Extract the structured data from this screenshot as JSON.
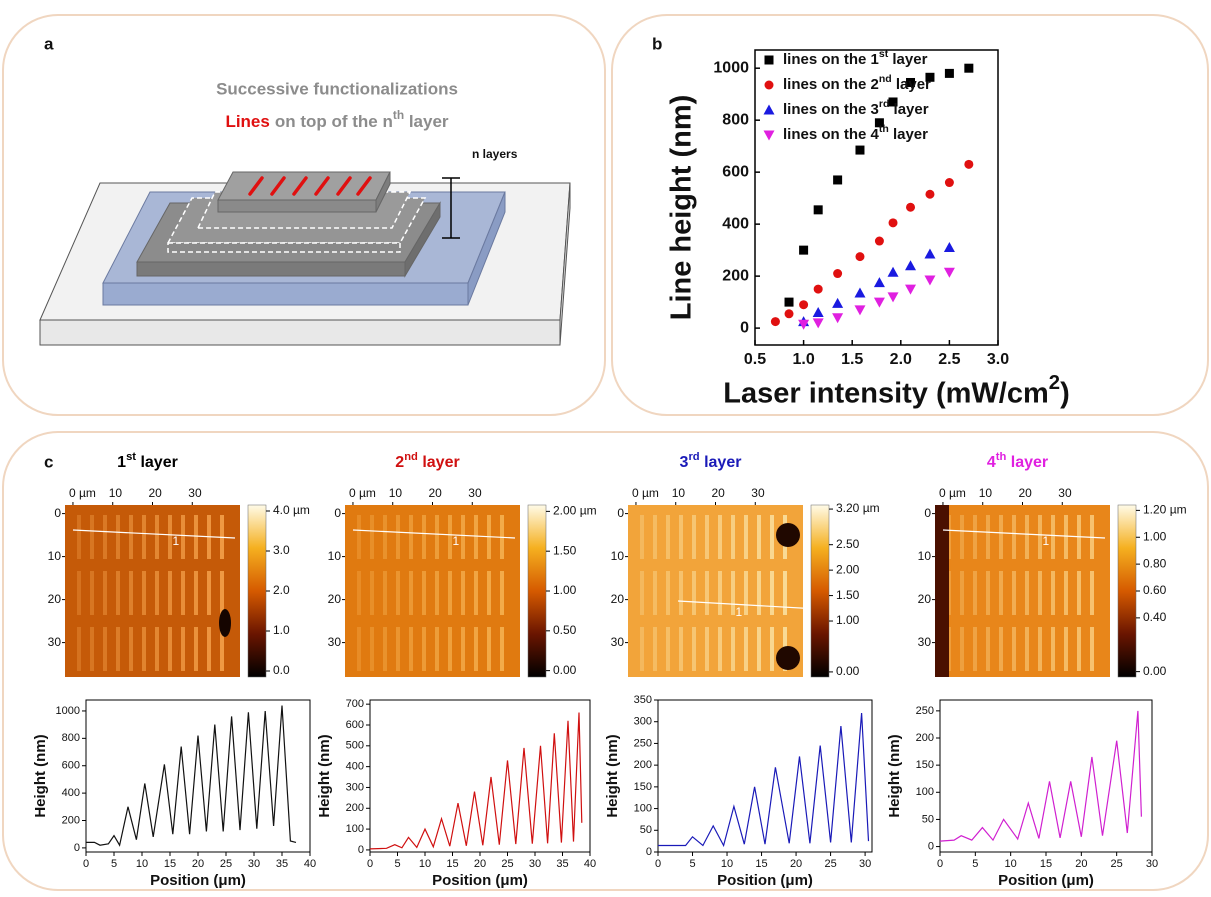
{
  "panel_labels": [
    "a",
    "b",
    "c"
  ],
  "panel_a": {
    "title": "Successive functionalizations",
    "highlight": "Lines",
    "rest": "on top of the nth layer",
    "annotation": "n layers"
  },
  "afm_images": [
    {
      "title": "1st layer",
      "color": "#000000",
      "xticks": [
        {
          "value": 0,
          "label": "0 µm"
        },
        10,
        20,
        30
      ],
      "yticks": [
        0,
        10,
        20,
        30
      ],
      "xlim": [
        -2,
        42
      ],
      "ylim": [
        -2,
        38
      ],
      "profile_label": "1",
      "colorbar": {
        "lim": [
          -0.15,
          4.15
        ],
        "ticks": [
          {
            "value": 4,
            "label": "4.0 µm"
          },
          {
            "value": 3,
            "label": "3.0"
          },
          {
            "value": 2,
            "label": "2.0"
          },
          {
            "value": 1,
            "label": "1.0"
          },
          {
            "value": 0,
            "label": "0.0"
          }
        ]
      }
    },
    {
      "title": "2nd layer",
      "color": "#d01010",
      "xticks": [
        {
          "value": 0,
          "label": "0 µm"
        },
        10,
        20,
        30
      ],
      "yticks": [
        0,
        10,
        20,
        30
      ],
      "xlim": [
        -2,
        42
      ],
      "ylim": [
        -2,
        38
      ],
      "profile_label": "1",
      "colorbar": {
        "lim": [
          -0.08,
          2.08
        ],
        "ticks": [
          {
            "value": 2,
            "label": "2.00 µm"
          },
          {
            "value": 1.5,
            "label": "1.50"
          },
          {
            "value": 1,
            "label": "1.00"
          },
          {
            "value": 0.5,
            "label": "0.50"
          },
          {
            "value": 0,
            "label": "0.00"
          }
        ]
      }
    },
    {
      "title": "3rd layer",
      "color": "#1a1ab8",
      "xticks": [
        {
          "value": 0,
          "label": "0 µm"
        },
        10,
        20,
        30
      ],
      "yticks": [
        0,
        10,
        20,
        30
      ],
      "xlim": [
        -2,
        42
      ],
      "ylim": [
        -2,
        38
      ],
      "profile_label": "1",
      "colorbar": {
        "lim": [
          -0.1,
          3.28
        ],
        "ticks": [
          {
            "value": 3.2,
            "label": "3.20 µm"
          },
          {
            "value": 2.5,
            "label": "2.50"
          },
          {
            "value": 2,
            "label": "2.00"
          },
          {
            "value": 1.5,
            "label": "1.50"
          },
          {
            "value": 1,
            "label": "1.00"
          },
          {
            "value": 0,
            "label": "0.00"
          }
        ]
      }
    },
    {
      "title": "4th layer",
      "color": "#e020e0",
      "xticks": [
        {
          "value": 0,
          "label": "0 µm"
        },
        10,
        20,
        30
      ],
      "yticks": [
        0,
        10,
        20,
        30
      ],
      "xlim": [
        -2,
        42
      ],
      "ylim": [
        -2,
        38
      ],
      "profile_label": "1",
      "colorbar": {
        "lim": [
          -0.04,
          1.24
        ],
        "ticks": [
          {
            "value": 1.2,
            "label": "1.20 µm"
          },
          {
            "value": 1,
            "label": "1.00"
          },
          {
            "value": 0.8,
            "label": "0.80"
          },
          {
            "value": 0.6,
            "label": "0.60"
          },
          {
            "value": 0.4,
            "label": "0.40"
          },
          {
            "value": 0,
            "label": "0.00"
          }
        ]
      }
    }
  ],
  "chart_data": [
    {
      "type": "scatter",
      "x_label": "Laser intensity (mW/cm2)",
      "y_label": "Line height (nm)",
      "xlim": [
        0.5,
        3.0
      ],
      "ylim": [
        -65,
        1070
      ],
      "xticks": [
        0.5,
        {
          "value": 1,
          "label": "1.0"
        },
        1.5,
        {
          "value": 2,
          "label": "2.0"
        },
        2.5,
        {
          "value": 3,
          "label": "3.0"
        }
      ],
      "yticks": [
        0,
        200,
        400,
        600,
        800,
        1000
      ],
      "legend": "upper-left",
      "series": [
        {
          "name": "lines on the 1st layer",
          "color": "#000000",
          "marker": "square",
          "x": [
            0.85,
            1.0,
            1.15,
            1.35,
            1.58,
            1.78,
            1.92,
            2.1,
            2.3,
            2.5,
            2.7
          ],
          "values": [
            100,
            300,
            455,
            570,
            685,
            790,
            870,
            945,
            965,
            980,
            1000
          ]
        },
        {
          "name": "lines on the 2nd layer",
          "color": "#e01010",
          "marker": "circle",
          "x": [
            0.71,
            0.85,
            1.0,
            1.15,
            1.35,
            1.58,
            1.78,
            1.92,
            2.1,
            2.3,
            2.5,
            2.7
          ],
          "values": [
            25,
            55,
            90,
            150,
            210,
            275,
            335,
            405,
            465,
            515,
            560,
            630
          ]
        },
        {
          "name": "lines on the 3rd layer",
          "color": "#1a1ae0",
          "marker": "triangle-up",
          "x": [
            1.0,
            1.15,
            1.35,
            1.58,
            1.78,
            1.92,
            2.1,
            2.3,
            2.5
          ],
          "values": [
            25,
            60,
            95,
            135,
            175,
            215,
            240,
            285,
            310
          ]
        },
        {
          "name": "lines on the 4th layer",
          "color": "#e020e0",
          "marker": "triangle-down",
          "x": [
            1.0,
            1.15,
            1.35,
            1.58,
            1.78,
            1.92,
            2.1,
            2.3,
            2.5
          ],
          "values": [
            15,
            20,
            40,
            70,
            100,
            120,
            150,
            185,
            215
          ]
        }
      ]
    },
    {
      "type": "line",
      "x_label": "Position (μm)",
      "y_label": "Height (nm)",
      "color": "#111111",
      "xlim": [
        0,
        40
      ],
      "ylim": [
        -30,
        1080
      ],
      "xticks": [
        0,
        5,
        10,
        15,
        20,
        25,
        30,
        35,
        40
      ],
      "yticks": [
        0,
        200,
        400,
        600,
        800,
        1000
      ],
      "x": [
        0,
        1.5,
        2.5,
        4,
        5,
        6,
        7.5,
        9,
        10.5,
        12,
        14,
        15.5,
        17,
        18.5,
        20,
        21.5,
        23,
        24.5,
        26,
        27.5,
        29,
        30.5,
        32,
        33.5,
        35,
        36.5,
        37.5
      ],
      "values": [
        40,
        40,
        20,
        30,
        90,
        20,
        300,
        60,
        470,
        80,
        610,
        100,
        740,
        100,
        820,
        120,
        900,
        120,
        960,
        130,
        990,
        140,
        1000,
        160,
        1040,
        50,
        40
      ]
    },
    {
      "type": "line",
      "x_label": "Position (μm)",
      "y_label": "Height (nm)",
      "color": "#d01010",
      "xlim": [
        0,
        40
      ],
      "ylim": [
        -10,
        720
      ],
      "xticks": [
        0,
        5,
        10,
        15,
        20,
        25,
        30,
        35,
        40
      ],
      "yticks": [
        0,
        100,
        200,
        300,
        400,
        500,
        600,
        700
      ],
      "x": [
        0,
        3,
        4.5,
        5.8,
        7,
        8.5,
        10,
        11.5,
        13,
        14.5,
        16,
        17.5,
        19,
        20.5,
        22,
        23.5,
        25,
        26.5,
        28,
        29.5,
        31,
        32.3,
        33.5,
        34.8,
        36,
        37,
        38,
        38.5
      ],
      "values": [
        5,
        8,
        25,
        10,
        60,
        12,
        100,
        15,
        150,
        18,
        225,
        20,
        280,
        22,
        350,
        25,
        430,
        28,
        490,
        30,
        500,
        32,
        560,
        35,
        620,
        40,
        660,
        130
      ]
    },
    {
      "type": "line",
      "x_label": "Position (μm)",
      "y_label": "Height (nm)",
      "color": "#1a1ab8",
      "xlim": [
        0,
        31
      ],
      "ylim": [
        0,
        350
      ],
      "xticks": [
        0,
        5,
        10,
        15,
        20,
        25,
        30
      ],
      "yticks": [
        0,
        50,
        100,
        150,
        200,
        250,
        300,
        350
      ],
      "x": [
        0,
        4,
        5,
        6.5,
        8,
        9.5,
        11,
        12.5,
        14,
        15.5,
        17,
        19,
        20.5,
        22,
        23.5,
        25,
        26.5,
        28,
        29.5,
        30.5
      ],
      "values": [
        15,
        15,
        35,
        15,
        60,
        15,
        105,
        18,
        150,
        18,
        195,
        20,
        220,
        20,
        245,
        22,
        290,
        22,
        320,
        25
      ]
    },
    {
      "type": "line",
      "x_label": "Position (μm)",
      "y_label": "Height (nm)",
      "color": "#d020d0",
      "xlim": [
        0,
        30
      ],
      "ylim": [
        -10,
        270
      ],
      "xticks": [
        0,
        5,
        10,
        15,
        20,
        25,
        30
      ],
      "yticks": [
        0,
        50,
        100,
        150,
        200,
        250
      ],
      "x": [
        0,
        2,
        3,
        4.5,
        6,
        7.5,
        9,
        11,
        12.5,
        14,
        15.5,
        17,
        18.5,
        20,
        21.5,
        23,
        25,
        26.5,
        28,
        28.5
      ],
      "values": [
        10,
        12,
        20,
        12,
        35,
        12,
        50,
        14,
        80,
        15,
        120,
        16,
        120,
        18,
        165,
        20,
        195,
        25,
        250,
        55
      ]
    }
  ]
}
